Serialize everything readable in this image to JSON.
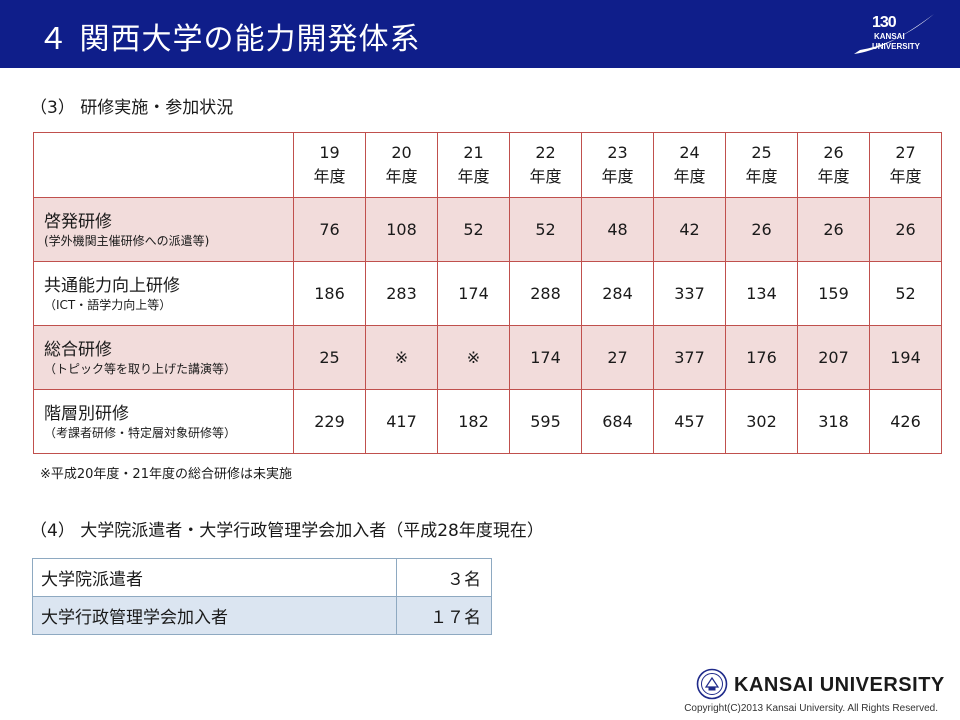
{
  "header": {
    "title": "４ 関西大学の能力開発体系",
    "logo": {
      "anniversary": "130",
      "line1": "KANSAI",
      "line2": "UNIVERSITY"
    }
  },
  "section3": {
    "heading": "（3） 研修実施・参加状況",
    "columns": [
      {
        "num": "19",
        "unit": "年度"
      },
      {
        "num": "20",
        "unit": "年度"
      },
      {
        "num": "21",
        "unit": "年度"
      },
      {
        "num": "22",
        "unit": "年度"
      },
      {
        "num": "23",
        "unit": "年度"
      },
      {
        "num": "24",
        "unit": "年度"
      },
      {
        "num": "25",
        "unit": "年度"
      },
      {
        "num": "26",
        "unit": "年度"
      },
      {
        "num": "27",
        "unit": "年度"
      }
    ],
    "rows": [
      {
        "label": "啓発研修",
        "sub": "(学外機関主催研修への派遣等)",
        "values": [
          "76",
          "108",
          "52",
          "52",
          "48",
          "42",
          "26",
          "26",
          "26"
        ]
      },
      {
        "label": "共通能力向上研修",
        "sub": "（ICT・語学力向上等）",
        "values": [
          "186",
          "283",
          "174",
          "288",
          "284",
          "337",
          "134",
          "159",
          "52"
        ]
      },
      {
        "label": "総合研修",
        "sub": "（トピック等を取り上げた講演等）",
        "values": [
          "25",
          "※",
          "※",
          "174",
          "27",
          "377",
          "176",
          "207",
          "194"
        ]
      },
      {
        "label": "階層別研修",
        "sub": "（考課者研修・特定層対象研修等）",
        "values": [
          "229",
          "417",
          "182",
          "595",
          "684",
          "457",
          "302",
          "318",
          "426"
        ]
      }
    ],
    "note": "※平成20年度・21年度の総合研修は未実施"
  },
  "section4": {
    "heading": "（4） 大学院派遣者・大学行政管理学会加入者（平成28年度現在）",
    "rows": [
      {
        "name": "大学院派遣者",
        "count": "３名"
      },
      {
        "name": "大学行政管理学会加入者",
        "count": "１７名"
      }
    ]
  },
  "footer": {
    "brand": "KANSAI UNIVERSITY",
    "copyright": "Copyright(C)2013 Kansai University. All Rights Reserved."
  }
}
